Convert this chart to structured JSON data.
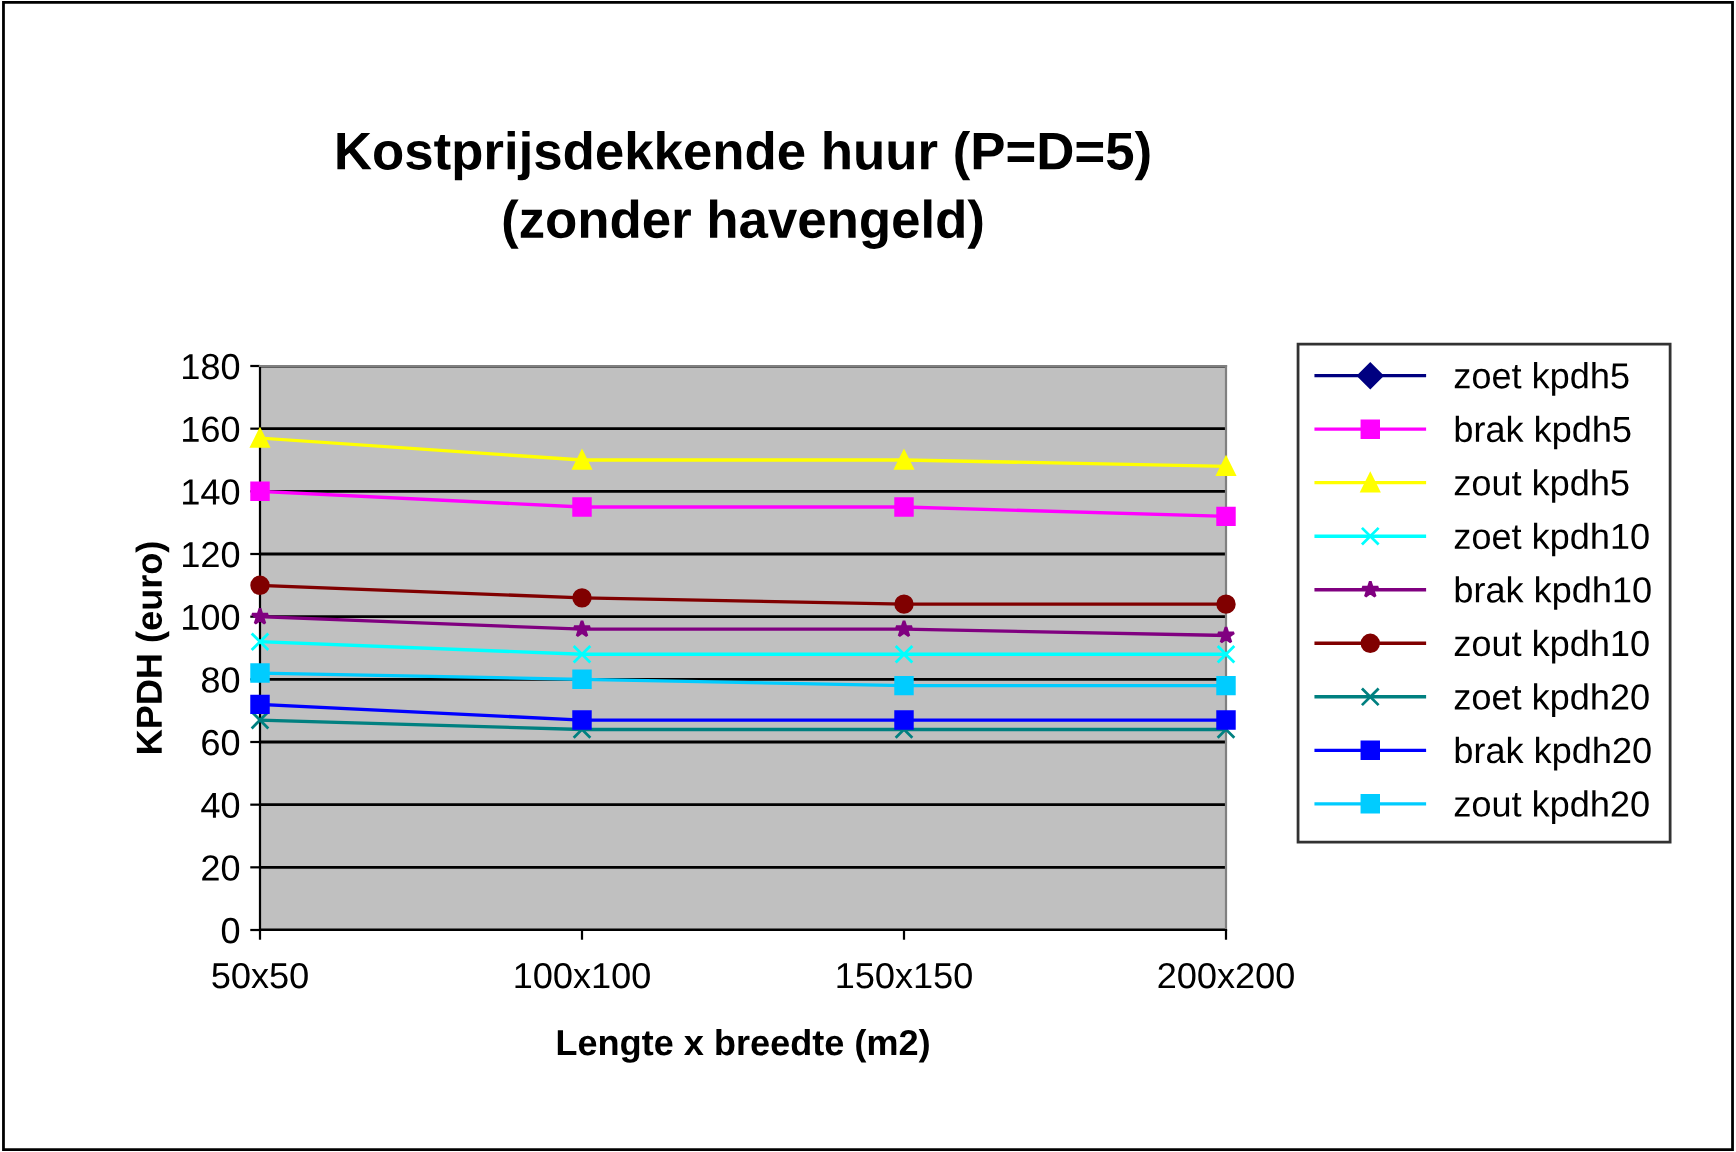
{
  "chart_data": {
    "type": "line",
    "title": "Kostprijsdekkende huur (P=D=5)\n(zonder havengeld)",
    "xlabel": "Lengte x breedte (m2)",
    "ylabel": "KPDH (euro)",
    "categories": [
      "50x50",
      "100x100",
      "150x150",
      "200x200"
    ],
    "series": [
      {
        "name": "zoet kpdh5",
        "color": "#000080",
        "marker": "diamond",
        "values": [
          null,
          null,
          null,
          null
        ]
      },
      {
        "name": "brak kpdh5",
        "color": "#ff00ff",
        "marker": "square",
        "values": [
          140,
          135,
          135,
          132
        ]
      },
      {
        "name": "zout kpdh5",
        "color": "#ffff00",
        "marker": "triangle",
        "values": [
          157,
          150,
          150,
          148
        ]
      },
      {
        "name": "zoet kpdh10",
        "color": "#00ffff",
        "marker": "cross",
        "values": [
          92,
          88,
          88,
          88
        ]
      },
      {
        "name": "brak kpdh10",
        "color": "#800080",
        "marker": "star",
        "values": [
          100,
          96,
          96,
          94
        ]
      },
      {
        "name": "zout kpdh10",
        "color": "#800000",
        "marker": "circle",
        "values": [
          110,
          106,
          104,
          104
        ]
      },
      {
        "name": "zoet kpdh20",
        "color": "#008080",
        "marker": "cross",
        "values": [
          67,
          64,
          64,
          64
        ]
      },
      {
        "name": "brak kpdh20",
        "color": "#0000ff",
        "marker": "square",
        "values": [
          72,
          67,
          67,
          67
        ]
      },
      {
        "name": "zout kpdh20",
        "color": "#00ccff",
        "marker": "square",
        "values": [
          82,
          80,
          78,
          78
        ]
      }
    ],
    "ylim": [
      0,
      180
    ],
    "yticks": [
      0,
      20,
      40,
      60,
      80,
      100,
      120,
      140,
      160,
      180
    ],
    "grid": "y",
    "legend": "right"
  }
}
